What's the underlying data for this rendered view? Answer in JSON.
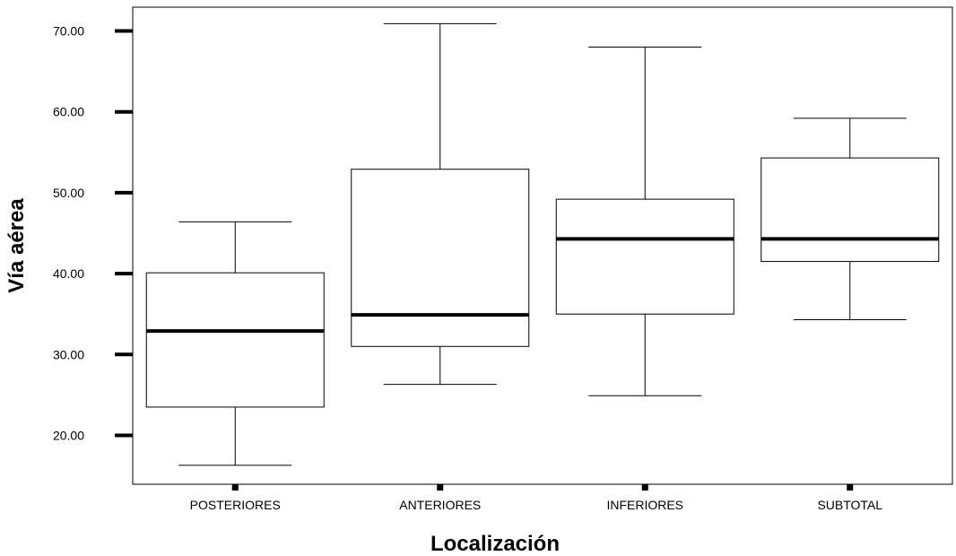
{
  "chart_data": {
    "type": "boxplot",
    "title": "",
    "xlabel": "Localización",
    "ylabel": "Vía aérea",
    "ylim": [
      14,
      72
    ],
    "yticks": [
      "20.00",
      "30.00",
      "40.00",
      "50.00",
      "60.00",
      "70.00"
    ],
    "ytick_values": [
      20,
      30,
      40,
      50,
      60,
      70
    ],
    "grid": false,
    "categories": [
      "POSTERIORES",
      "ANTERIORES",
      "INFERIORES",
      "SUBTOTAL"
    ],
    "boxes": [
      {
        "category": "POSTERIORES",
        "min": 16.3,
        "q1": 23.5,
        "median": 32.9,
        "q3": 40.1,
        "max": 46.4
      },
      {
        "category": "ANTERIORES",
        "min": 26.3,
        "q1": 31.0,
        "median": 34.9,
        "q3": 52.9,
        "max": 70.9
      },
      {
        "category": "INFERIORES",
        "min": 24.9,
        "q1": 35.0,
        "median": 44.3,
        "q3": 49.2,
        "max": 68.0
      },
      {
        "category": "SUBTOTAL",
        "min": 34.3,
        "q1": 41.5,
        "median": 44.3,
        "q3": 54.3,
        "max": 59.2
      }
    ]
  }
}
